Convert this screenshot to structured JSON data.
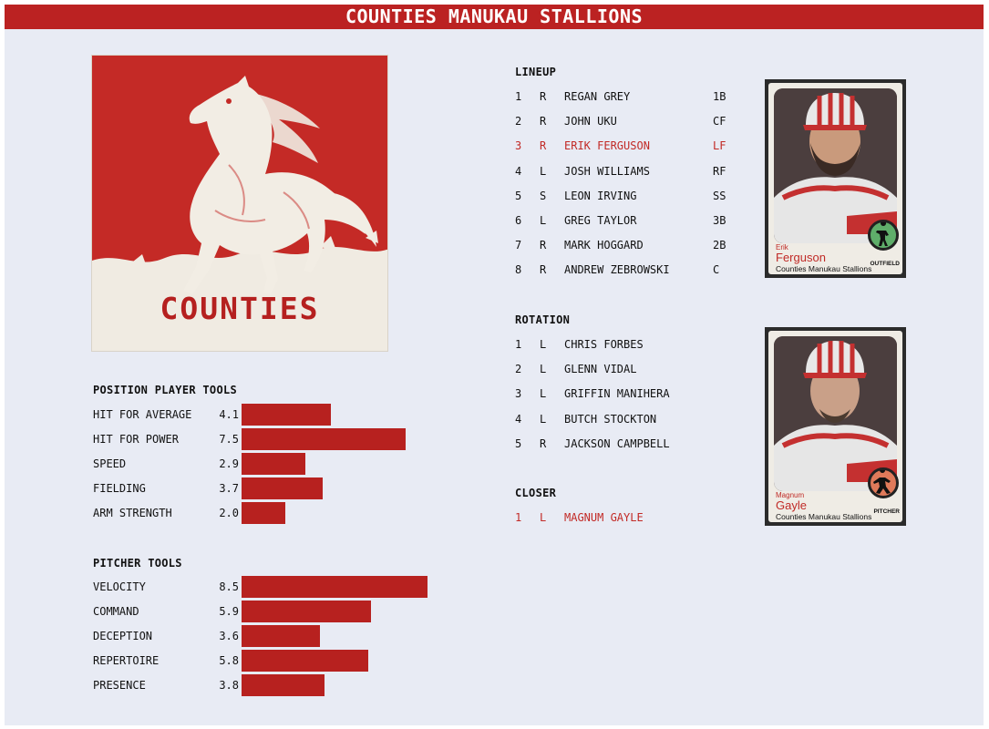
{
  "team_name": "COUNTIES MANUKAU STALLIONS",
  "logo": {
    "text": "COUNTIES",
    "icon": "horse-icon"
  },
  "position_tools": {
    "title": "POSITION PLAYER TOOLS",
    "max": 10,
    "items": [
      {
        "label": "HIT FOR AVERAGE",
        "value": "4.1",
        "num": 4.1
      },
      {
        "label": "HIT FOR POWER",
        "value": "7.5",
        "num": 7.5
      },
      {
        "label": "SPEED",
        "value": "2.9",
        "num": 2.9
      },
      {
        "label": "FIELDING",
        "value": "3.7",
        "num": 3.7
      },
      {
        "label": "ARM STRENGTH",
        "value": "2.0",
        "num": 2.0
      }
    ]
  },
  "pitcher_tools": {
    "title": "PITCHER TOOLS",
    "max": 10,
    "items": [
      {
        "label": "VELOCITY",
        "value": "8.5",
        "num": 8.5
      },
      {
        "label": "COMMAND",
        "value": "5.9",
        "num": 5.9
      },
      {
        "label": "DECEPTION",
        "value": "3.6",
        "num": 3.6
      },
      {
        "label": "REPERTOIRE",
        "value": "5.8",
        "num": 5.8
      },
      {
        "label": "PRESENCE",
        "value": "3.8",
        "num": 3.8
      }
    ]
  },
  "lineup": {
    "title": "LINEUP",
    "rows": [
      {
        "num": "1",
        "hand": "R",
        "name": "REGAN GREY",
        "pos": "1B"
      },
      {
        "num": "2",
        "hand": "R",
        "name": "JOHN UKU",
        "pos": "CF"
      },
      {
        "num": "3",
        "hand": "R",
        "name": "ERIK FERGUSON",
        "pos": "LF"
      },
      {
        "num": "4",
        "hand": "L",
        "name": "JOSH WILLIAMS",
        "pos": "RF"
      },
      {
        "num": "5",
        "hand": "S",
        "name": "LEON IRVING",
        "pos": "SS"
      },
      {
        "num": "6",
        "hand": "L",
        "name": "GREG TAYLOR",
        "pos": "3B"
      },
      {
        "num": "7",
        "hand": "R",
        "name": "MARK HOGGARD",
        "pos": "2B"
      },
      {
        "num": "8",
        "hand": "R",
        "name": "ANDREW ZEBROWSKI",
        "pos": "C"
      }
    ]
  },
  "rotation": {
    "title": "ROTATION",
    "rows": [
      {
        "num": "1",
        "hand": "L",
        "name": "CHRIS FORBES"
      },
      {
        "num": "2",
        "hand": "L",
        "name": "GLENN VIDAL"
      },
      {
        "num": "3",
        "hand": "L",
        "name": "GRIFFIN MANIHERA"
      },
      {
        "num": "4",
        "hand": "L",
        "name": "BUTCH STOCKTON"
      },
      {
        "num": "5",
        "hand": "R",
        "name": "JACKSON CAMPBELL"
      }
    ]
  },
  "closer": {
    "title": "CLOSER",
    "rows": [
      {
        "num": "1",
        "hand": "L",
        "name": "MAGNUM GAYLE"
      }
    ]
  },
  "cards": [
    {
      "first": "Erik",
      "last": "Ferguson",
      "team": "Counties Manukau Stallions",
      "position": "OUTFIELD",
      "badge_color": "#5fae6a",
      "icon": "outfielder-icon"
    },
    {
      "first": "Magnum",
      "last": "Gayle",
      "team": "Counties Manukau Stallions",
      "position": "PITCHER",
      "badge_color": "#e07a5a",
      "icon": "pitcher-icon"
    }
  ],
  "colors": {
    "accent": "#bb2222",
    "bar": "#b7211f",
    "highlight": "#c22a26",
    "background": "#e8ebf4"
  }
}
